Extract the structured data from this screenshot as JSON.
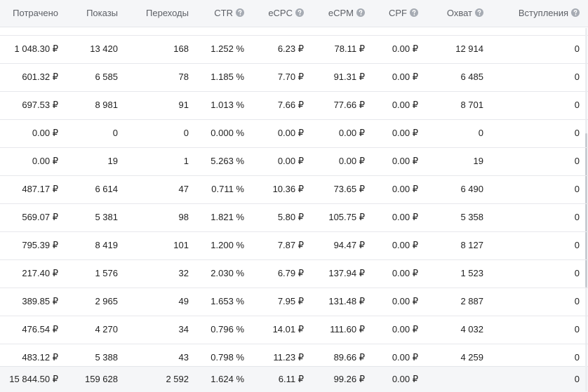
{
  "header": [
    "Потрачено",
    "Показы",
    "Переходы",
    "CTR",
    "eCPC",
    "eCPM",
    "CPF",
    "Охват",
    "Вступления"
  ],
  "rows": [
    [
      "1 048.30 ₽",
      "13 420",
      "168",
      "1.252 %",
      "6.23 ₽",
      "78.11 ₽",
      "0.00 ₽",
      "12 914",
      "0"
    ],
    [
      "601.32 ₽",
      "6 585",
      "78",
      "1.185 %",
      "7.70 ₽",
      "91.31 ₽",
      "0.00 ₽",
      "6 485",
      "0"
    ],
    [
      "697.53 ₽",
      "8 981",
      "91",
      "1.013 %",
      "7.66 ₽",
      "77.66 ₽",
      "0.00 ₽",
      "8 701",
      "0"
    ],
    [
      "0.00 ₽",
      "0",
      "0",
      "0.000 %",
      "0.00 ₽",
      "0.00 ₽",
      "0.00 ₽",
      "0",
      "0"
    ],
    [
      "0.00 ₽",
      "19",
      "1",
      "5.263 %",
      "0.00 ₽",
      "0.00 ₽",
      "0.00 ₽",
      "19",
      "0"
    ],
    [
      "487.17 ₽",
      "6 614",
      "47",
      "0.711 %",
      "10.36 ₽",
      "73.65 ₽",
      "0.00 ₽",
      "6 490",
      "0"
    ],
    [
      "569.07 ₽",
      "5 381",
      "98",
      "1.821 %",
      "5.80 ₽",
      "105.75 ₽",
      "0.00 ₽",
      "5 358",
      "0"
    ],
    [
      "795.39 ₽",
      "8 419",
      "101",
      "1.200 %",
      "7.87 ₽",
      "94.47 ₽",
      "0.00 ₽",
      "8 127",
      "0"
    ],
    [
      "217.40 ₽",
      "1 576",
      "32",
      "2.030 %",
      "6.79 ₽",
      "137.94 ₽",
      "0.00 ₽",
      "1 523",
      "0"
    ],
    [
      "389.85 ₽",
      "2 965",
      "49",
      "1.653 %",
      "7.95 ₽",
      "131.48 ₽",
      "0.00 ₽",
      "2 887",
      "0"
    ],
    [
      "476.54 ₽",
      "4 270",
      "34",
      "0.796 %",
      "14.01 ₽",
      "111.60 ₽",
      "0.00 ₽",
      "4 032",
      "0"
    ],
    [
      "483.12 ₽",
      "5 388",
      "43",
      "0.798 %",
      "11.23 ₽",
      "89.66 ₽",
      "0.00 ₽",
      "4 259",
      "0"
    ]
  ],
  "footer": [
    "15 844.50 ₽",
    "159 628",
    "2 592",
    "1.624 %",
    "6.11 ₽",
    "99.26 ₽",
    "0.00 ₽",
    null,
    "0"
  ]
}
